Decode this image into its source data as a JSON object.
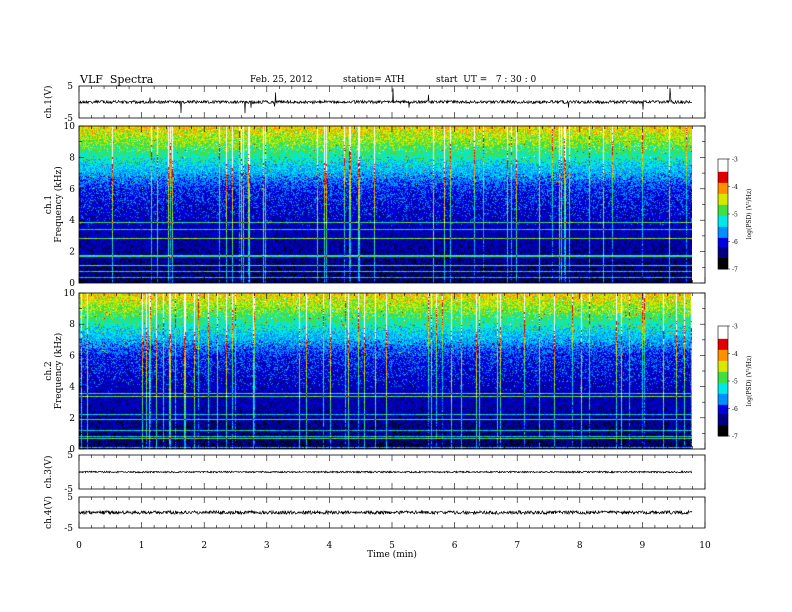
{
  "header": {
    "title": "VLF  Spectra",
    "date": "Feb. 25, 2012",
    "station": "station= ATH",
    "start": "start  UT =   7 : 30 : 0"
  },
  "colors": {
    "colormap": [
      "#000000",
      "#000080",
      "#0000e0",
      "#0090ff",
      "#00e8e8",
      "#40e040",
      "#d8e800",
      "#ff9000",
      "#e00000",
      "#ffffff"
    ],
    "trace": "#000000"
  },
  "chart_data": {
    "type": "heatmap",
    "xlabel": "Time  (min)",
    "xlim": [
      0,
      10
    ],
    "x_ticks": [
      "0",
      "1",
      "2",
      "3",
      "4",
      "5",
      "6",
      "7",
      "8",
      "9",
      "10"
    ],
    "panels": [
      {
        "id": "ch1v",
        "kind": "waveform",
        "ylabel": "ch.1(V)",
        "ylim": [
          -5,
          5
        ],
        "y_ticks": [
          "5",
          "-5"
        ]
      },
      {
        "id": "ch1s",
        "kind": "spectrogram",
        "ylabel": "ch.1",
        "ylabel2": "Frequency  (kHz)",
        "ylim": [
          0,
          10
        ],
        "y_ticks": [
          "0",
          "2",
          "4",
          "6",
          "8",
          "10"
        ],
        "data_end_min": 9.8
      },
      {
        "id": "ch2s",
        "kind": "spectrogram",
        "ylabel": "ch.2",
        "ylabel2": "Frequency  (kHz)",
        "ylim": [
          0,
          10
        ],
        "y_ticks": [
          "0",
          "2",
          "4",
          "6",
          "8",
          "10"
        ],
        "data_end_min": 9.8
      },
      {
        "id": "ch3v",
        "kind": "waveform",
        "ylabel": "ch.3(V)",
        "ylim": [
          -5,
          5
        ],
        "y_ticks": [
          "5",
          "-5"
        ]
      },
      {
        "id": "ch4v",
        "kind": "waveform",
        "ylabel": "ch.4(V)",
        "ylim": [
          -5,
          5
        ],
        "y_ticks": [
          "5",
          "-5"
        ]
      }
    ],
    "colorbar": {
      "label": "log(PSD) (V²/Hz)",
      "range": [
        -7,
        -3
      ],
      "ticks": [
        "-3",
        "-4",
        "-5",
        "-6",
        "-7"
      ]
    }
  }
}
